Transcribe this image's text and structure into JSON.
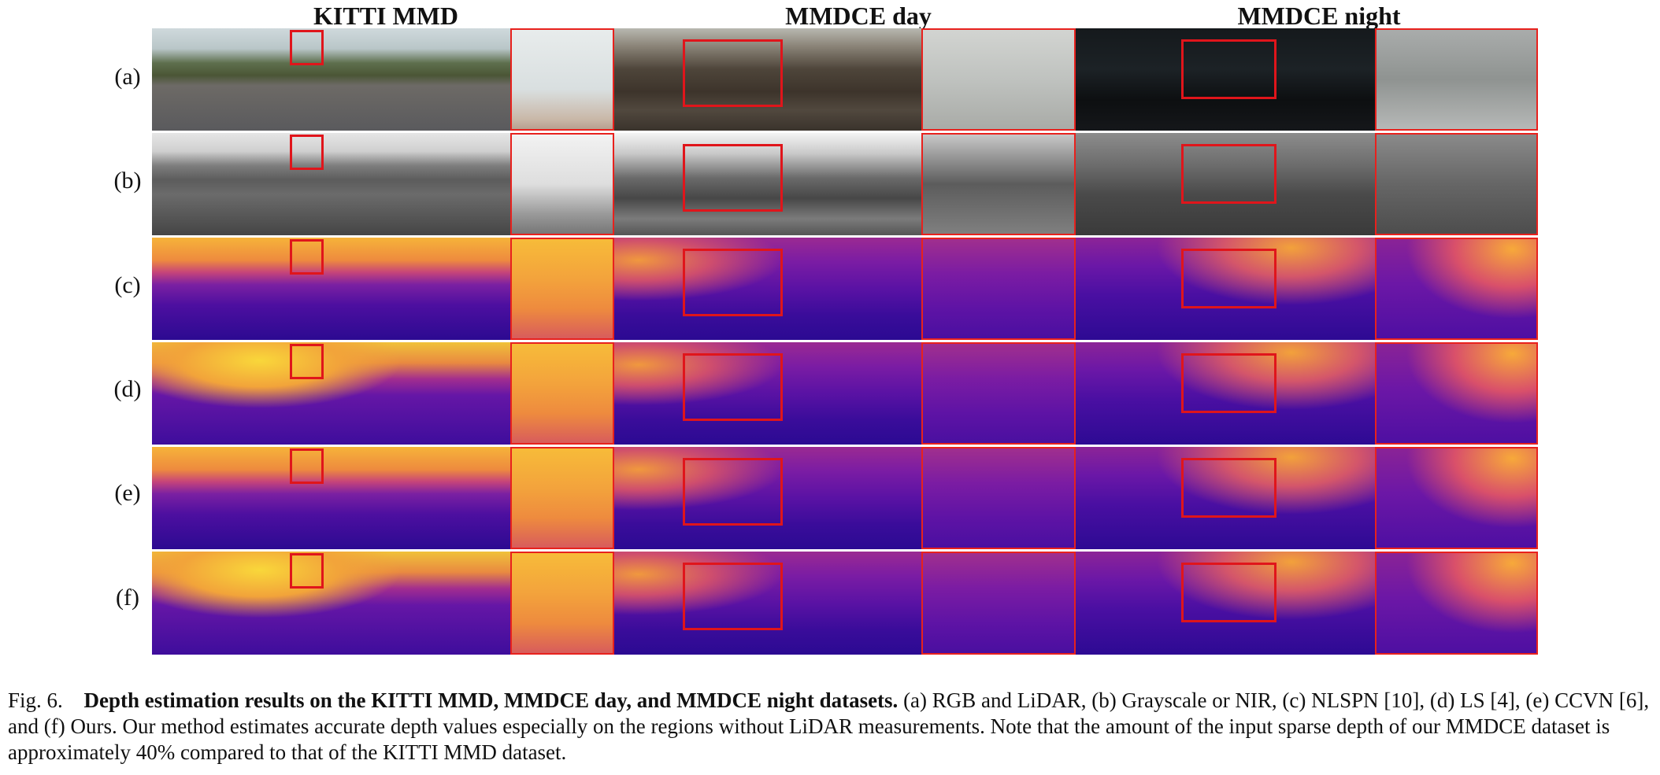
{
  "figure": {
    "column_titles": [
      "KITTI MMD",
      "MMDCE day",
      "MMDCE night"
    ],
    "row_labels": [
      "(a)",
      "(b)",
      "(c)",
      "(d)",
      "(e)",
      "(f)"
    ],
    "caption": {
      "figure_number": "Fig. 6.",
      "title": "Depth estimation results on the KITTI MMD, MMDCE day, and MMDCE night datasets.",
      "body": "(a) RGB and LiDAR, (b) Grayscale or NIR, (c) NLSPN [10], (d) LS [4], (e) CCVN [6], and (f) Ours. Our method estimates accurate depth values especially on the regions without LiDAR measurements. Note that the amount of the input sparse depth of our MMDCE dataset is approximately 40% compared to that of the KITTI MMD dataset."
    },
    "colors": {
      "highlight_box": "#e0151b",
      "depth_colormap": "plasma"
    }
  }
}
